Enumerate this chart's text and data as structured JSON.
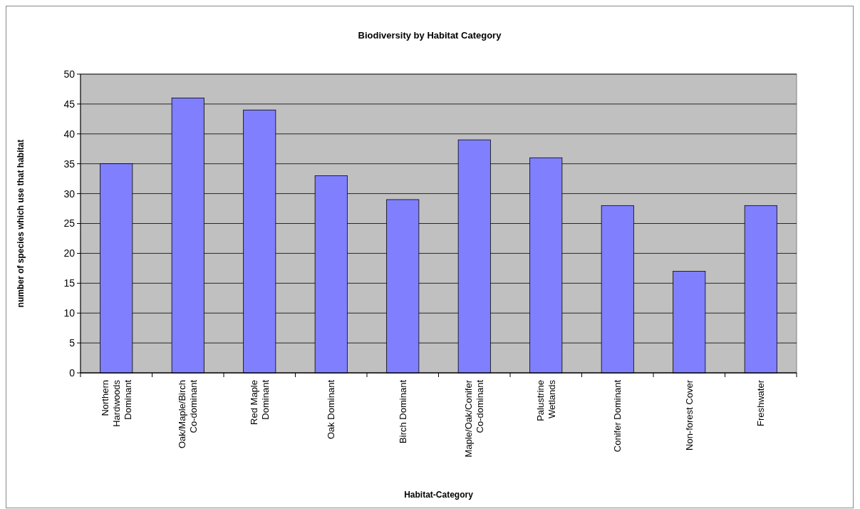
{
  "chart_data": {
    "type": "bar",
    "title": "Biodiversity by Habitat Category",
    "xlabel": "Habitat-Category",
    "ylabel": "number of species which use that habitat",
    "categories": [
      "Northern Hardwoods Dominant",
      "Oak/Maple/Birch Co-dominant",
      "Red Maple Dominant",
      "Oak Dominant",
      "Birch Dominant",
      "Maple/Oak/Conifer Co-dominant",
      "Palustrine Wetlands",
      "Conifer Dominant",
      "Non-forest Cover",
      "Freshwater"
    ],
    "values": [
      35,
      46,
      44,
      33,
      29,
      39,
      36,
      28,
      17,
      28
    ],
    "color": "#8080ff",
    "ylim": [
      0,
      50
    ],
    "yticks": [
      0,
      5,
      10,
      15,
      20,
      25,
      30,
      35,
      40,
      45,
      50
    ],
    "grid": "y"
  }
}
